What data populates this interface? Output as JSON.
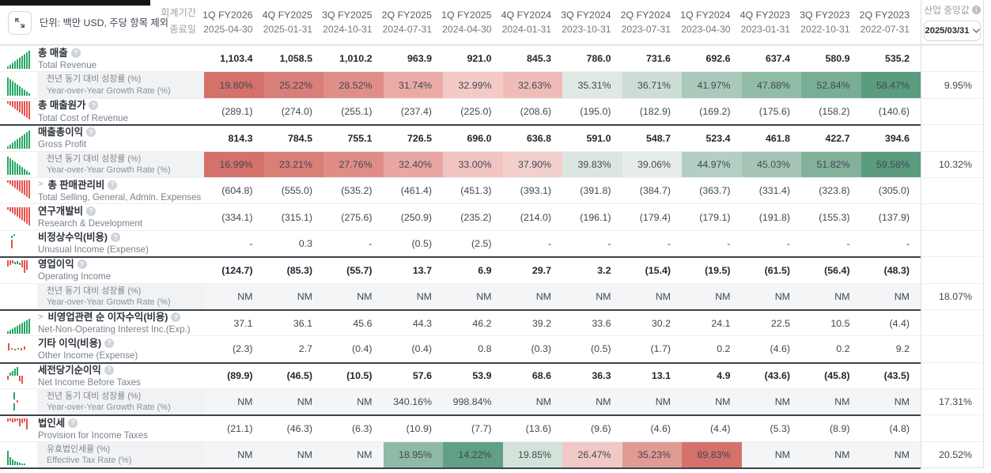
{
  "header": {
    "units_label": "단위: 백만 USD, 주당 항목 제외",
    "fiscal_period_label": "회계기간",
    "end_date_label": "종료일",
    "industry_median_label": "산업 중앙값",
    "median_date_selected": "2025/03/31"
  },
  "columns": [
    {
      "period": "1Q FY2026",
      "date": "2025-04-30"
    },
    {
      "period": "4Q FY2025",
      "date": "2025-01-31"
    },
    {
      "period": "3Q FY2025",
      "date": "2024-10-31"
    },
    {
      "period": "2Q FY2025",
      "date": "2024-07-31"
    },
    {
      "period": "1Q FY2025",
      "date": "2024-04-30"
    },
    {
      "period": "4Q FY2024",
      "date": "2024-01-31"
    },
    {
      "period": "3Q FY2024",
      "date": "2023-10-31"
    },
    {
      "period": "2Q FY2024",
      "date": "2023-07-31"
    },
    {
      "period": "1Q FY2024",
      "date": "2023-04-30"
    },
    {
      "period": "4Q FY2023",
      "date": "2023-01-31"
    },
    {
      "period": "3Q FY2023",
      "date": "2022-10-31"
    },
    {
      "period": "2Q FY2023",
      "date": "2022-07-31"
    }
  ],
  "rows": [
    {
      "kind": "main",
      "label_ko": "총 매출",
      "label_en": "Total Revenue",
      "icon": "mini-bars-up-green",
      "expandable": false,
      "info": true,
      "bold": true,
      "group_start": false,
      "values": [
        "1,103.4",
        "1,058.5",
        "1,010.2",
        "963.9",
        "921.0",
        "845.3",
        "786.0",
        "731.6",
        "692.6",
        "637.4",
        "580.9",
        "535.2"
      ],
      "median": ""
    },
    {
      "kind": "sub",
      "label_ko": "전년 동기 대비 성장률 (%)",
      "label_en": "Year-over-Year Growth Rate (%)",
      "icon": "mini-bars-down-green",
      "expandable": false,
      "info": false,
      "bold": false,
      "group_start": false,
      "values": [
        "19.80%",
        "25.22%",
        "28.52%",
        "31.74%",
        "32.99%",
        "32.63%",
        "35.31%",
        "36.71%",
        "41.97%",
        "47.88%",
        "52.84%",
        "58.47%"
      ],
      "cell_bg": [
        "#d5716b",
        "#d97f79",
        "#e08e88",
        "#eaaba7",
        "#f4cac7",
        "#f0bcb8",
        "#dfe8e3",
        "#cdddd5",
        "#a9c9ba",
        "#91bca8",
        "#79ad96",
        "#599c7e"
      ],
      "median": "9.95%"
    },
    {
      "kind": "main",
      "label_ko": "총 매출원가",
      "label_en": "Total Cost of Revenue",
      "icon": "mini-bars-hang-red",
      "expandable": false,
      "info": true,
      "bold": false,
      "group_start": false,
      "values": [
        "(289.1)",
        "(274.0)",
        "(255.1)",
        "(237.4)",
        "(225.0)",
        "(208.6)",
        "(195.0)",
        "(182.9)",
        "(169.2)",
        "(175.6)",
        "(158.2)",
        "(140.6)"
      ],
      "median": ""
    },
    {
      "kind": "main",
      "label_ko": "매출총이익",
      "label_en": "Gross Profit",
      "icon": "mini-bars-up-green",
      "expandable": false,
      "info": true,
      "bold": true,
      "group_start": true,
      "values": [
        "814.3",
        "784.5",
        "755.1",
        "726.5",
        "696.0",
        "636.8",
        "591.0",
        "548.7",
        "523.4",
        "461.8",
        "422.7",
        "394.6"
      ],
      "median": ""
    },
    {
      "kind": "sub",
      "label_ko": "전년 동기 대비 성장률 (%)",
      "label_en": "Year-over-Year Growth Rate (%)",
      "icon": "mini-bars-down-green",
      "expandable": false,
      "info": false,
      "bold": false,
      "group_start": false,
      "values": [
        "16.99%",
        "23.21%",
        "27.76%",
        "32.40%",
        "33.00%",
        "37.90%",
        "39.83%",
        "39.06%",
        "44.97%",
        "45.03%",
        "51.82%",
        "59.58%"
      ],
      "cell_bg": [
        "#d5716b",
        "#d97f78",
        "#e08d87",
        "#e9a7a3",
        "#f2c4c1",
        "#f3d0cd",
        "#dce6e1",
        "#e6ede9",
        "#b3cfc3",
        "#a5c6b6",
        "#83b19c",
        "#599c7e"
      ],
      "median": "10.32%"
    },
    {
      "kind": "main",
      "label_ko": "총 판매관리비",
      "label_en": "Total Selling, General, Admin. Expenses",
      "icon": "mini-bars-hang-red",
      "expandable": true,
      "info": true,
      "bold": false,
      "group_start": false,
      "values": [
        "(604.8)",
        "(555.0)",
        "(535.2)",
        "(461.4)",
        "(451.3)",
        "(393.1)",
        "(391.8)",
        "(384.7)",
        "(363.7)",
        "(331.4)",
        "(323.8)",
        "(305.0)"
      ],
      "median": ""
    },
    {
      "kind": "main",
      "label_ko": "연구개발비",
      "label_en": "Research & Development",
      "icon": "mini-bars-hang-red",
      "expandable": false,
      "info": true,
      "bold": false,
      "group_start": false,
      "values": [
        "(334.1)",
        "(315.1)",
        "(275.6)",
        "(250.9)",
        "(235.2)",
        "(214.0)",
        "(196.1)",
        "(179.4)",
        "(179.1)",
        "(191.8)",
        "(155.3)",
        "(137.9)"
      ],
      "median": ""
    },
    {
      "kind": "main",
      "label_ko": "비정상수익(비용)",
      "label_en": "Unusual Income (Expense)",
      "icon": "mini-candle-mixed",
      "expandable": false,
      "info": true,
      "bold": false,
      "group_start": false,
      "values": [
        "-",
        "0.3",
        "-",
        "(0.5)",
        "(2.5)",
        "-",
        "-",
        "-",
        "-",
        "-",
        "-",
        "-"
      ],
      "median": ""
    },
    {
      "kind": "main",
      "label_ko": "영업이익",
      "label_en": "Operating Income",
      "icon": "mini-mixed-red-green",
      "expandable": false,
      "info": true,
      "bold": true,
      "group_start": true,
      "values": [
        "(124.7)",
        "(85.3)",
        "(55.7)",
        "13.7",
        "6.9",
        "29.7",
        "3.2",
        "(15.4)",
        "(19.5)",
        "(61.5)",
        "(56.4)",
        "(48.3)"
      ],
      "median": ""
    },
    {
      "kind": "sub",
      "label_ko": "전년 동기 대비 성장률 (%)",
      "label_en": "Year-over-Year Growth Rate (%)",
      "icon": null,
      "expandable": false,
      "info": false,
      "bold": false,
      "group_start": false,
      "values": [
        "NM",
        "NM",
        "NM",
        "NM",
        "NM",
        "NM",
        "NM",
        "NM",
        "NM",
        "NM",
        "NM",
        "NM"
      ],
      "median": "18.07%"
    },
    {
      "kind": "main",
      "label_ko": "비영업관련 순 이자수익(비용)",
      "label_en": "Net-Non-Operating Interest Inc.(Exp.)",
      "icon": "mini-bars-up-green-small",
      "expandable": true,
      "info": true,
      "bold": false,
      "group_start": true,
      "values": [
        "37.1",
        "36.1",
        "45.6",
        "44.3",
        "46.2",
        "39.2",
        "33.6",
        "30.2",
        "24.1",
        "22.5",
        "10.5",
        "(4.4)"
      ],
      "median": ""
    },
    {
      "kind": "main",
      "label_ko": "기타 이익(비용)",
      "label_en": "Other Income (Expense)",
      "icon": "mini-sparse-mixed",
      "expandable": false,
      "info": true,
      "bold": false,
      "group_start": false,
      "values": [
        "(2.3)",
        "2.7",
        "(0.4)",
        "(0.4)",
        "0.8",
        "(0.3)",
        "(0.5)",
        "(1.7)",
        "0.2",
        "(4.6)",
        "0.2",
        "9.2"
      ],
      "median": ""
    },
    {
      "kind": "main",
      "label_ko": "세전당기순이익",
      "label_en": "Net Income Before Taxes",
      "icon": "mini-mixed-green-red",
      "expandable": false,
      "info": true,
      "bold": true,
      "group_start": true,
      "values": [
        "(89.9)",
        "(46.5)",
        "(10.5)",
        "57.6",
        "53.9",
        "68.6",
        "36.3",
        "13.1",
        "4.9",
        "(43.6)",
        "(45.8)",
        "(43.5)"
      ],
      "median": ""
    },
    {
      "kind": "sub",
      "label_ko": "전년 동기 대비 성장률 (%)",
      "label_en": "Year-over-Year Growth Rate (%)",
      "icon": "mini-sparse-lines",
      "expandable": false,
      "info": false,
      "bold": false,
      "group_start": false,
      "values": [
        "NM",
        "NM",
        "NM",
        "340.16%",
        "998.84%",
        "NM",
        "NM",
        "NM",
        "NM",
        "NM",
        "NM",
        "NM"
      ],
      "median": "17.31%"
    },
    {
      "kind": "main",
      "label_ko": "법인세",
      "label_en": "Provision for Income Taxes",
      "icon": "mini-thin-hang-red",
      "expandable": false,
      "info": true,
      "bold": false,
      "group_start": true,
      "values": [
        "(21.1)",
        "(46.3)",
        "(6.3)",
        "(10.9)",
        "(7.7)",
        "(13.6)",
        "(9.6)",
        "(4.6)",
        "(4.4)",
        "(5.3)",
        "(8.9)",
        "(4.8)"
      ],
      "median": ""
    },
    {
      "kind": "sub",
      "label_ko": "유효법인세율 (%)",
      "label_en": "Effective Tax Rate (%)",
      "icon": "mini-bars-down-green-small",
      "expandable": false,
      "info": false,
      "bold": false,
      "group_start": false,
      "values": [
        "NM",
        "NM",
        "NM",
        "18.95%",
        "14.22%",
        "19.85%",
        "26.47%",
        "35.23%",
        "89.83%",
        "NM",
        "NM",
        "NM"
      ],
      "cell_bg": [
        null,
        null,
        null,
        "#8fbaa6",
        "#61a085",
        "#d4e2da",
        "#f0c9c6",
        "#e29a95",
        "#d5716b",
        null,
        null,
        null
      ],
      "median": "20.52%"
    }
  ],
  "colors": {
    "growth_negative_strong": "#d5716b",
    "growth_positive_strong": "#599c7e",
    "icon_green": "#27a662",
    "icon_red": "#e8524c",
    "group_border": "#3c434c",
    "subrow_bg": "#f4f5f7"
  }
}
